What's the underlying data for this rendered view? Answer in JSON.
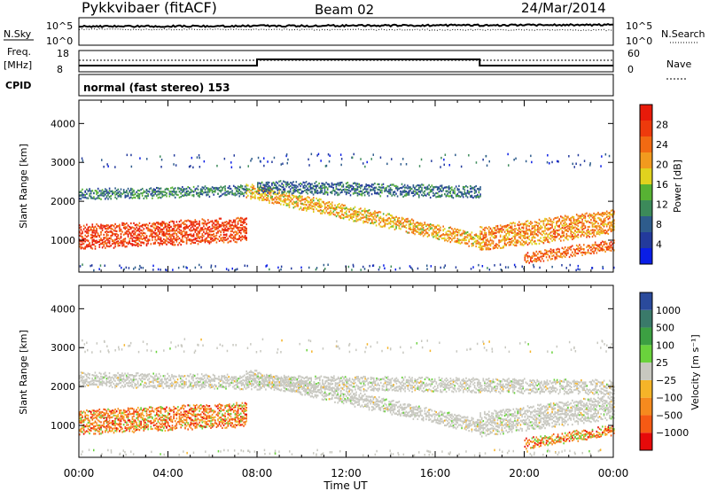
{
  "header": {
    "station": "Pykkvibaer (fitACF)",
    "beam": "Beam 02",
    "date": "24/Mar/2014"
  },
  "top_panels": {
    "nsky_label": "N.Sky",
    "nsky_ticks": [
      "10^5",
      "10^0"
    ],
    "nsearch_label": "N.Search",
    "nsearch_ticks": [
      "10^5",
      "10^0"
    ],
    "freq_label": "Freq.",
    "freq_unit": "[MHz]",
    "freq_ticks": [
      "18",
      "8"
    ],
    "nave_label": "Nave",
    "nave_ticks": [
      "60",
      "0"
    ],
    "cpid_label": "CPID",
    "cpid_text": "normal (fast stereo) 153"
  },
  "colors": {
    "power": [
      "#0a1ee6",
      "#233a9c",
      "#2e5c8c",
      "#3c8a5a",
      "#57b233",
      "#e0d21e",
      "#f29a1e",
      "#f26a12",
      "#ee3a0c",
      "#e81a0a"
    ],
    "velocity": [
      "#e60a0a",
      "#f55a14",
      "#f58a1e",
      "#f5b428",
      "#c8c8c0",
      "#6ad23c",
      "#3ca042",
      "#3a7a6a",
      "#2a4a9c"
    ]
  },
  "chart_data": [
    {
      "type": "heatmap",
      "name": "power",
      "xlabel": "",
      "ylabel": "Slant Range [km]",
      "x_ticks": [
        "00:00",
        "04:00",
        "08:00",
        "12:00",
        "16:00",
        "20:00",
        "00:00"
      ],
      "y_ticks": [
        "1000",
        "2000",
        "3000",
        "4000"
      ],
      "ylim": [
        180,
        4600
      ],
      "xlim_hours": [
        0,
        24
      ],
      "colorbar_label": "Power [dB]",
      "colorbar_ticks": [
        "4",
        "8",
        "12",
        "16",
        "20",
        "24",
        "28"
      ],
      "bands": [
        {
          "t": [
            0,
            7.5
          ],
          "range_center": [
            1100,
            1300
          ],
          "thickness": 600,
          "level": 27
        },
        {
          "t": [
            0,
            7.5
          ],
          "range_center": [
            2200,
            2300
          ],
          "thickness": 250,
          "level": 10
        },
        {
          "t": [
            7.5,
            18
          ],
          "range_center": [
            2300,
            1000
          ],
          "thickness": 350,
          "level": 20
        },
        {
          "t": [
            8,
            18
          ],
          "range_center": [
            2400,
            2250
          ],
          "thickness": 300,
          "level": 9
        },
        {
          "t": [
            18,
            24
          ],
          "range_center": [
            1050,
            1500
          ],
          "thickness": 600,
          "level": 22
        },
        {
          "t": [
            20,
            24
          ],
          "range_center": [
            550,
            900
          ],
          "thickness": 250,
          "level": 24
        }
      ]
    },
    {
      "type": "heatmap",
      "name": "velocity",
      "xlabel": "Time UT",
      "ylabel": "Slant Range [km]",
      "x_ticks": [
        "00:00",
        "04:00",
        "08:00",
        "12:00",
        "16:00",
        "20:00",
        "00:00"
      ],
      "y_ticks": [
        "1000",
        "2000",
        "3000",
        "4000"
      ],
      "ylim": [
        180,
        4600
      ],
      "xlim_hours": [
        0,
        24
      ],
      "colorbar_label": "Velocity [m s⁻¹]",
      "colorbar_ticks": [
        "1000",
        "500",
        "100",
        "25",
        "−25",
        "−100",
        "−500",
        "−1000"
      ],
      "bands": [
        {
          "t": [
            0,
            7.5
          ],
          "range_center": [
            1100,
            1300
          ],
          "thickness": 600,
          "velocity": -300
        },
        {
          "t": [
            0,
            24
          ],
          "range_center": [
            2200,
            2000
          ],
          "thickness": 350,
          "velocity": 0
        },
        {
          "t": [
            7.5,
            18
          ],
          "range_center": [
            2300,
            1000
          ],
          "thickness": 350,
          "velocity": 0
        },
        {
          "t": [
            18,
            24
          ],
          "range_center": [
            1050,
            1500
          ],
          "thickness": 600,
          "velocity": 0
        },
        {
          "t": [
            20,
            24
          ],
          "range_center": [
            550,
            900
          ],
          "thickness": 250,
          "velocity": -400
        }
      ]
    }
  ]
}
